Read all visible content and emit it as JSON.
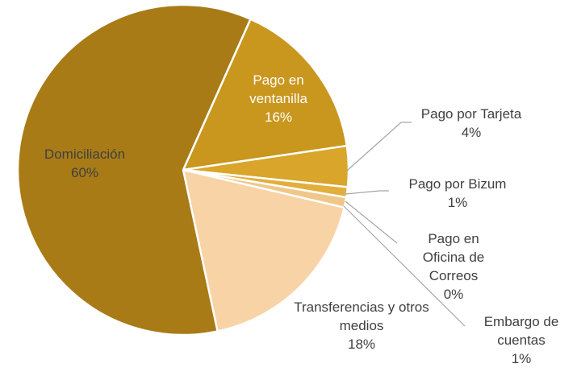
{
  "chart_data": {
    "type": "pie",
    "categories": [
      "Pago en ventanilla",
      "Pago por Tarjeta",
      "Pago por Bizum",
      "Pago en Oficina de Correos",
      "Embargo de cuentas",
      "Transferencias y otros medios",
      "Domiciliación"
    ],
    "values": [
      16,
      4,
      1,
      0,
      1,
      18,
      60
    ],
    "value_labels": [
      "16%",
      "4%",
      "1%",
      "0%",
      "1%",
      "18%",
      "60%"
    ],
    "colors": [
      "#C9961E",
      "#D9A52A",
      "#E2AE3C",
      "#E8B95A",
      "#F0C78A",
      "#F8D3A6",
      "#A87B17"
    ]
  }
}
